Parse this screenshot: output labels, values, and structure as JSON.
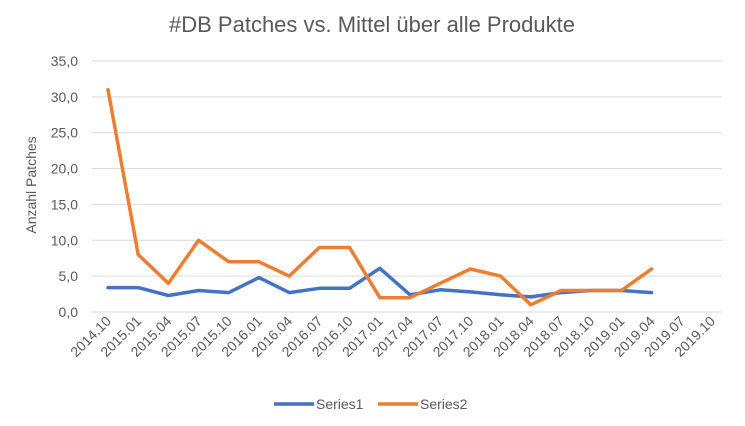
{
  "chart_data": {
    "type": "line",
    "title": "#DB Patches vs. Mittel über alle Produkte",
    "xlabel": "",
    "ylabel": "Anzahl Patches",
    "ylim": [
      0,
      35
    ],
    "y_ticks": [
      "0,0",
      "5,0",
      "10,0",
      "15,0",
      "20,0",
      "25,0",
      "30,0",
      "35,0"
    ],
    "categories": [
      "2014.10",
      "2015.01",
      "2015.04",
      "2015.07",
      "2015.10",
      "2016.01",
      "2016.04",
      "2016.07",
      "2016.10",
      "2017.01",
      "2017.04",
      "2017.07",
      "2017.10",
      "2018.01",
      "2018.04",
      "2018.07",
      "2018.10",
      "2019.01",
      "2019.04",
      "2019.07",
      "2019.10"
    ],
    "grid": true,
    "legend_position": "bottom",
    "series": [
      {
        "name": "Series1",
        "color": "#4472C4",
        "values": [
          3.4,
          3.4,
          2.3,
          3.0,
          2.7,
          4.8,
          2.7,
          3.3,
          3.3,
          6.1,
          2.4,
          3.1,
          2.8,
          2.4,
          2.1,
          2.7,
          3.0,
          3.0,
          2.7,
          null,
          null
        ]
      },
      {
        "name": "Series2",
        "color": "#ED7D31",
        "values": [
          31,
          8,
          4,
          10,
          7,
          7,
          5,
          9,
          9,
          2,
          2,
          4,
          6,
          5,
          1,
          3,
          3,
          3,
          6,
          null,
          null
        ]
      }
    ]
  }
}
